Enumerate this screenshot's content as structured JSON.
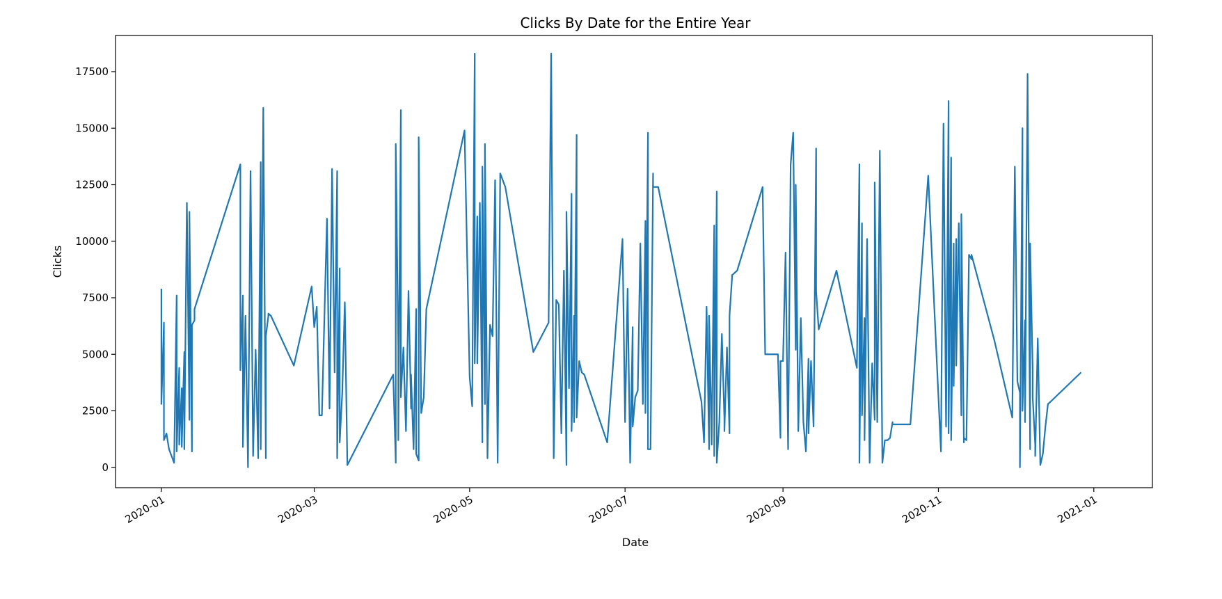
{
  "chart_data": {
    "type": "line",
    "title": "Clicks By Date for the Entire Year",
    "xlabel": "Date",
    "ylabel": "Clicks",
    "xlim": [
      "2019-12-14",
      "2021-01-24"
    ],
    "ylim": [
      -900,
      19100
    ],
    "x_ticks": [
      "2020-01",
      "2020-03",
      "2020-05",
      "2020-07",
      "2020-09",
      "2020-11",
      "2021-01"
    ],
    "y_ticks": [
      "0",
      "2500",
      "5000",
      "7500",
      "10000",
      "12500",
      "15000",
      "17500"
    ],
    "grid": false,
    "line_color": "#1f77b4",
    "series": [
      {
        "x": [
          "2020-01-01",
          "2020-01-01",
          "2020-01-02",
          "2020-01-02",
          "2020-01-03",
          "2020-01-04",
          "2020-01-06",
          "2020-01-07",
          "2020-01-07",
          "2020-01-08",
          "2020-01-08",
          "2020-01-09",
          "2020-01-09",
          "2020-01-10",
          "2020-01-10",
          "2020-01-11",
          "2020-01-12",
          "2020-01-12",
          "2020-01-13",
          "2020-01-13",
          "2020-01-14",
          "2020-01-14",
          "2020-02-01",
          "2020-02-01",
          "2020-02-02",
          "2020-02-02",
          "2020-02-03",
          "2020-02-04",
          "2020-02-05",
          "2020-02-06",
          "2020-02-07",
          "2020-02-08",
          "2020-02-08",
          "2020-02-09",
          "2020-02-09",
          "2020-02-10",
          "2020-02-11",
          "2020-02-11",
          "2020-02-12",
          "2020-02-12",
          "2020-02-13",
          "2020-02-22",
          "2020-02-29",
          "2020-03-01",
          "2020-03-02",
          "2020-03-03",
          "2020-03-04",
          "2020-03-05",
          "2020-03-06",
          "2020-03-07",
          "2020-03-08",
          "2020-03-09",
          "2020-03-09",
          "2020-03-10",
          "2020-03-10",
          "2020-03-11",
          "2020-03-11",
          "2020-03-12",
          "2020-03-13",
          "2020-03-14",
          "2020-04-01",
          "2020-04-02",
          "2020-04-02",
          "2020-04-03",
          "2020-04-03",
          "2020-04-04",
          "2020-04-04",
          "2020-04-05",
          "2020-04-06",
          "2020-04-07",
          "2020-04-08",
          "2020-04-08",
          "2020-04-09",
          "2020-04-10",
          "2020-04-10",
          "2020-04-11",
          "2020-04-11",
          "2020-04-12",
          "2020-04-13",
          "2020-04-14",
          "2020-04-29",
          "2020-05-01",
          "2020-05-02",
          "2020-05-03",
          "2020-05-03",
          "2020-05-04",
          "2020-05-04",
          "2020-05-05",
          "2020-05-06",
          "2020-05-06",
          "2020-05-07",
          "2020-05-07",
          "2020-05-08",
          "2020-05-09",
          "2020-05-10",
          "2020-05-11",
          "2020-05-12",
          "2020-05-13",
          "2020-05-14",
          "2020-05-14",
          "2020-05-15",
          "2020-05-26",
          "2020-06-01",
          "2020-06-02",
          "2020-06-03",
          "2020-06-04",
          "2020-06-05",
          "2020-06-06",
          "2020-06-07",
          "2020-06-08",
          "2020-06-08",
          "2020-06-09",
          "2020-06-10",
          "2020-06-10",
          "2020-06-11",
          "2020-06-11",
          "2020-06-12",
          "2020-06-12",
          "2020-06-13",
          "2020-06-14",
          "2020-06-14",
          "2020-06-15",
          "2020-06-24",
          "2020-06-30",
          "2020-07-01",
          "2020-07-02",
          "2020-07-03",
          "2020-07-04",
          "2020-07-04",
          "2020-07-05",
          "2020-07-06",
          "2020-07-07",
          "2020-07-08",
          "2020-07-09",
          "2020-07-09",
          "2020-07-10",
          "2020-07-10",
          "2020-07-11",
          "2020-07-12",
          "2020-07-12",
          "2020-07-13",
          "2020-07-14",
          "2020-07-31",
          "2020-08-01",
          "2020-08-02",
          "2020-08-03",
          "2020-08-03",
          "2020-08-04",
          "2020-08-05",
          "2020-08-05",
          "2020-08-06",
          "2020-08-06",
          "2020-08-07",
          "2020-08-08",
          "2020-08-09",
          "2020-08-09",
          "2020-08-10",
          "2020-08-11",
          "2020-08-11",
          "2020-08-12",
          "2020-08-12",
          "2020-08-13",
          "2020-08-14",
          "2020-08-24",
          "2020-08-25",
          "2020-08-30",
          "2020-08-31",
          "2020-08-31",
          "2020-09-01",
          "2020-09-02",
          "2020-09-03",
          "2020-09-04",
          "2020-09-05",
          "2020-09-06",
          "2020-09-06",
          "2020-09-07",
          "2020-09-08",
          "2020-09-09",
          "2020-09-10",
          "2020-09-11",
          "2020-09-11",
          "2020-09-12",
          "2020-09-13",
          "2020-09-14",
          "2020-09-14",
          "2020-09-15",
          "2020-09-22",
          "2020-09-30",
          "2020-10-01",
          "2020-10-01",
          "2020-10-02",
          "2020-10-02",
          "2020-10-03",
          "2020-10-03",
          "2020-10-04",
          "2020-10-05",
          "2020-10-06",
          "2020-10-07",
          "2020-10-07",
          "2020-10-08",
          "2020-10-09",
          "2020-10-10",
          "2020-10-11",
          "2020-10-12",
          "2020-10-13",
          "2020-10-14",
          "2020-10-14",
          "2020-10-21",
          "2020-10-28",
          "2020-11-02",
          "2020-11-03",
          "2020-11-04",
          "2020-11-05",
          "2020-11-05",
          "2020-11-06",
          "2020-11-06",
          "2020-11-07",
          "2020-11-07",
          "2020-11-08",
          "2020-11-08",
          "2020-11-09",
          "2020-11-10",
          "2020-11-10",
          "2020-11-11",
          "2020-11-11",
          "2020-11-12",
          "2020-11-13",
          "2020-11-14",
          "2020-11-14",
          "2020-11-23",
          "2020-11-30",
          "2020-12-01",
          "2020-12-02",
          "2020-12-03",
          "2020-12-03",
          "2020-12-04",
          "2020-12-04",
          "2020-12-05",
          "2020-12-05",
          "2020-12-06",
          "2020-12-07",
          "2020-12-07",
          "2020-12-08",
          "2020-12-08",
          "2020-12-09",
          "2020-12-09",
          "2020-12-10",
          "2020-12-11",
          "2020-12-12",
          "2020-12-13",
          "2020-12-14",
          "2020-12-15",
          "2020-12-27"
        ],
        "y": [
          7900,
          2800,
          6400,
          1200,
          1500,
          800,
          200,
          7600,
          700,
          4400,
          1000,
          3500,
          900,
          5100,
          800,
          11700,
          2100,
          11300,
          700,
          6300,
          6500,
          7000,
          13400,
          4300,
          7600,
          900,
          6700,
          0,
          13100,
          500,
          5200,
          400,
          700,
          13500,
          800,
          15900,
          400,
          5800,
          6700,
          6800,
          6700,
          4500,
          8000,
          6200,
          7100,
          2300,
          2300,
          6700,
          11000,
          2600,
          13200,
          4200,
          4200,
          13100,
          400,
          8800,
          1100,
          3300,
          7300,
          100,
          4100,
          200,
          14300,
          5300,
          1200,
          15800,
          3100,
          5300,
          1600,
          7800,
          2600,
          4100,
          800,
          7000,
          600,
          300,
          14600,
          2400,
          3100,
          7000,
          14900,
          4000,
          2700,
          18300,
          4600,
          11100,
          4600,
          11700,
          1100,
          13300,
          2800,
          14300,
          400,
          6300,
          5800,
          12700,
          200,
          13000,
          12700,
          12700,
          12400,
          5100,
          6400,
          18300,
          400,
          7400,
          7200,
          1500,
          8700,
          100,
          11300,
          3500,
          12100,
          1600,
          6700,
          2000,
          14700,
          2200,
          4700,
          4200,
          4200,
          4100,
          1100,
          10100,
          2000,
          7900,
          200,
          6200,
          1800,
          3100,
          3400,
          9900,
          2800,
          10900,
          2400,
          14800,
          800,
          800,
          13000,
          12400,
          12400,
          12400,
          2900,
          1100,
          7100,
          800,
          6700,
          1000,
          10700,
          500,
          12200,
          200,
          2000,
          5900,
          2100,
          1600,
          5300,
          1500,
          6700,
          8400,
          8500,
          8600,
          8700,
          12400,
          5000,
          5000,
          1300,
          4700,
          4700,
          9500,
          800,
          13400,
          14800,
          5200,
          12500,
          1600,
          6600,
          2000,
          700,
          4800,
          1500,
          4700,
          1800,
          14100,
          7800,
          6100,
          8700,
          4400,
          13400,
          200,
          10800,
          2300,
          6600,
          1200,
          10100,
          200,
          4600,
          2100,
          12600,
          2000,
          14000,
          200,
          1200,
          1200,
          1300,
          2000,
          1900,
          1900,
          12900,
          700,
          15200,
          1800,
          16200,
          1500,
          13700,
          1200,
          9900,
          3600,
          10100,
          4500,
          10800,
          2300,
          11200,
          1100,
          1300,
          1200,
          9400,
          9200,
          9400,
          5600,
          2200,
          13300,
          3800,
          3300,
          0,
          15000,
          2500,
          6500,
          2000,
          17400,
          800,
          9900,
          4300,
          3100,
          1000,
          500,
          5700,
          100,
          600,
          1800,
          2800,
          2900,
          4200
        ]
      }
    ]
  }
}
